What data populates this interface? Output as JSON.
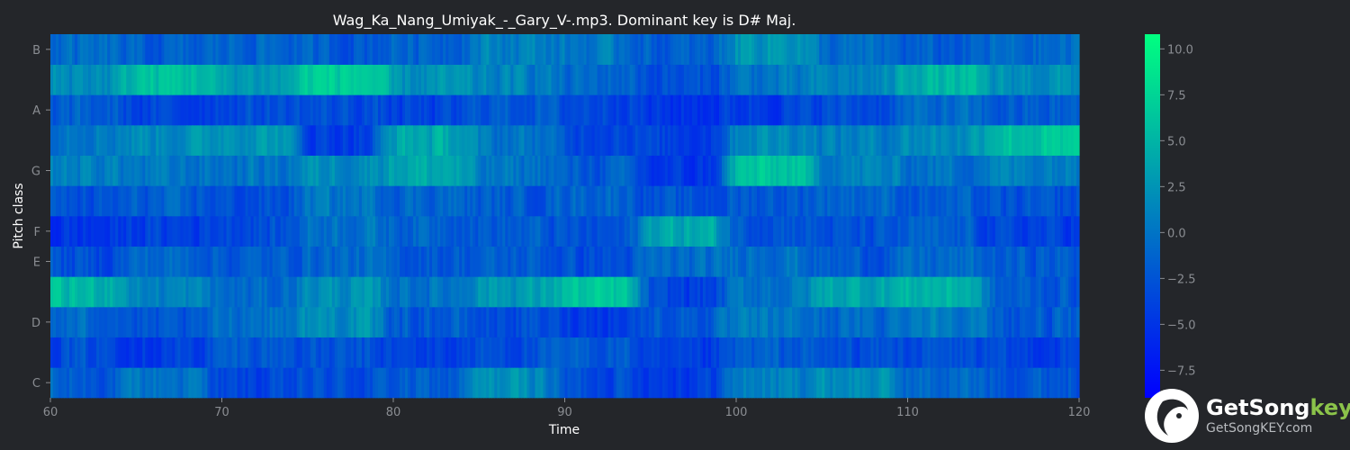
{
  "chart_data": {
    "type": "heatmap",
    "title": "Wag_Ka_Nang_Umiyak_-_Gary_V-.mp3. Dominant key is D# Maj.",
    "xlabel": "Time",
    "ylabel": "Pitch class",
    "xlim": [
      60,
      120
    ],
    "x_ticks": [
      60,
      70,
      80,
      90,
      100,
      110,
      120
    ],
    "y_rows": [
      "C",
      "C#",
      "D",
      "D#",
      "E",
      "F",
      "F#",
      "G",
      "G#",
      "A",
      "A#",
      "B"
    ],
    "y_tick_labels": [
      {
        "row": 0,
        "label": "C"
      },
      {
        "row": 2,
        "label": "D"
      },
      {
        "row": 4,
        "label": "E"
      },
      {
        "row": 5,
        "label": "F"
      },
      {
        "row": 7,
        "label": "G"
      },
      {
        "row": 9,
        "label": "A"
      },
      {
        "row": 11,
        "label": "B"
      }
    ],
    "colorbar": {
      "range": [
        -9,
        10.8
      ],
      "ticks": [
        -7.5,
        -5.0,
        -2.5,
        0.0,
        2.5,
        5.0,
        7.5,
        10.0
      ],
      "tick_labels": [
        "−7.5",
        "−5.0",
        "−2.5",
        "0.0",
        "2.5",
        "5.0",
        "7.5",
        "10.0"
      ],
      "colormap": "winter",
      "low_color": "#0000ff",
      "high_color": "#00ff80"
    },
    "segment_means": {
      "segment_times": [
        60,
        65,
        70,
        75,
        80,
        85,
        90,
        95,
        100,
        105,
        110,
        115,
        120
      ],
      "rows": {
        "C": [
          -2,
          0,
          -4,
          -3,
          -2,
          2,
          -3,
          -4,
          1,
          2,
          -1,
          -2
        ],
        "C#": [
          -3,
          -4,
          -2,
          -3,
          -4,
          -3,
          -2,
          -5,
          -2,
          -3,
          -3,
          -4
        ],
        "D": [
          -1,
          -3,
          0,
          2,
          -2,
          -3,
          -4,
          -2,
          0,
          -1,
          1,
          -2
        ],
        "D#": [
          5,
          1,
          -1,
          2,
          0,
          3,
          6,
          -4,
          0,
          4,
          5,
          -2
        ],
        "E": [
          -3,
          -1,
          -2,
          -1,
          -2,
          -2,
          -3,
          -1,
          0,
          -2,
          -1,
          -2
        ],
        "F": [
          -5,
          -4,
          -3,
          0,
          -1,
          -2,
          -3,
          4,
          -2,
          -3,
          -2,
          -4
        ],
        "F#": [
          -3,
          -2,
          -3,
          0,
          -1,
          -2,
          -1,
          -3,
          -2,
          -1,
          -2,
          -3
        ],
        "G": [
          1,
          0,
          0,
          2,
          4,
          0,
          -2,
          -5,
          6,
          1,
          0,
          1
        ],
        "G#": [
          1,
          2,
          3,
          -4,
          4,
          0,
          -3,
          -4,
          2,
          1,
          2,
          6
        ],
        "A": [
          -2,
          -4,
          -3,
          -3,
          -4,
          -2,
          -3,
          -5,
          -4,
          -3,
          -1,
          -2
        ],
        "A#": [
          2,
          6,
          3,
          7,
          2,
          1,
          -1,
          -3,
          0,
          1,
          5,
          2
        ],
        "B": [
          -1,
          -2,
          -1,
          -2,
          -1,
          1,
          0,
          -2,
          3,
          -1,
          -2,
          -1
        ]
      }
    }
  },
  "brand": {
    "name_main": "GetSong",
    "name_accent": "key",
    "url": "GetSongKEY.com",
    "logo_icon": "getsongkey-bird-logo-icon"
  }
}
